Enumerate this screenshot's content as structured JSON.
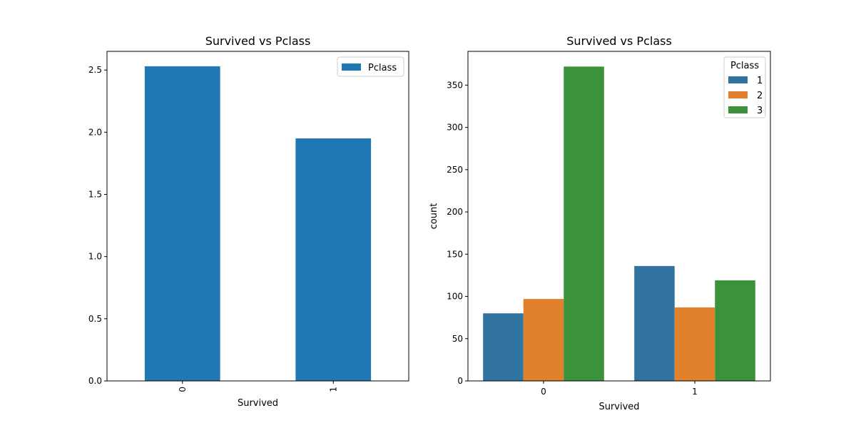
{
  "chart_data": [
    {
      "type": "bar",
      "title": "Survived vs Pclass",
      "xlabel": "Survived",
      "ylabel": "",
      "categories": [
        "0",
        "1"
      ],
      "series": [
        {
          "name": "Pclass",
          "values": [
            2.53,
            1.95
          ]
        }
      ],
      "ylim": [
        0,
        2.65
      ],
      "yticks": [
        0.0,
        0.5,
        1.0,
        1.5,
        2.0,
        2.5
      ],
      "ytick_labels": [
        "0.0",
        "0.5",
        "1.0",
        "1.5",
        "2.0",
        "2.5"
      ],
      "xtick_rotation": "vertical",
      "legend": {
        "title": "",
        "placement": "top-right"
      },
      "grid": false,
      "colors": [
        "#1f77b4"
      ]
    },
    {
      "type": "bar",
      "title": "Survived vs Pclass",
      "xlabel": "Survived",
      "ylabel": "count",
      "categories": [
        "0",
        "1"
      ],
      "series": [
        {
          "name": "1",
          "values": [
            80,
            136
          ]
        },
        {
          "name": "2",
          "values": [
            97,
            87
          ]
        },
        {
          "name": "3",
          "values": [
            372,
            119
          ]
        }
      ],
      "ylim": [
        0,
        390
      ],
      "yticks": [
        0,
        50,
        100,
        150,
        200,
        250,
        300,
        350
      ],
      "ytick_labels": [
        "0",
        "50",
        "100",
        "150",
        "200",
        "250",
        "300",
        "350"
      ],
      "xtick_rotation": "horizontal",
      "legend": {
        "title": "Pclass",
        "placement": "top-right"
      },
      "grid": false,
      "colors": [
        "#3274a1",
        "#e1812c",
        "#3a923a"
      ]
    }
  ]
}
